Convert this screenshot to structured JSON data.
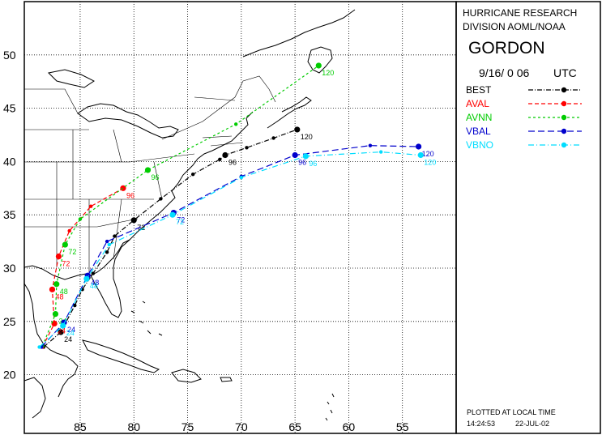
{
  "header": {
    "org_line1": "HURRICANE RESEARCH",
    "org_line2": "DIVISION AOML/NOAA",
    "storm_name": "GORDON",
    "datetime": "9/16/ 0 06",
    "tz": "UTC"
  },
  "footer": {
    "plotted_note": "PLOTTED AT LOCAL TIME",
    "time": "14:24:53",
    "date": "22-JUL-02"
  },
  "chart_data": {
    "type": "line",
    "lon_ticks": [
      {
        "value": 85,
        "label": "85"
      },
      {
        "value": 80,
        "label": "80"
      },
      {
        "value": 75,
        "label": "75"
      },
      {
        "value": 70,
        "label": "70"
      },
      {
        "value": 65,
        "label": "65"
      },
      {
        "value": 60,
        "label": "60"
      },
      {
        "value": 55,
        "label": "55"
      }
    ],
    "lat_ticks": [
      {
        "value": 50,
        "label": "50"
      },
      {
        "value": 45,
        "label": "45"
      },
      {
        "value": 40,
        "label": "40"
      },
      {
        "value": 35,
        "label": "35"
      },
      {
        "value": 30,
        "label": "30"
      },
      {
        "value": 25,
        "label": "25"
      },
      {
        "value": 20,
        "label": "20"
      }
    ],
    "xlim": [
      90.2,
      50.0
    ],
    "ylim": [
      14.5,
      55.0
    ],
    "series": [
      {
        "name": "BEST",
        "color": "#000000",
        "dash": "6,2,1,2",
        "points": [
          {
            "lon": 88.4,
            "lat": 22.6
          },
          {
            "lon": 86.8,
            "lat": 24.0,
            "label": "24"
          },
          {
            "lon": 85.5,
            "lat": 26.5
          },
          {
            "lon": 84.8,
            "lat": 28.0
          },
          {
            "lon": 83.8,
            "lat": 29.5
          },
          {
            "lon": 82.5,
            "lat": 31.5
          },
          {
            "lon": 81.8,
            "lat": 33.0
          },
          {
            "lon": 80.0,
            "lat": 34.5,
            "label": "72"
          },
          {
            "lon": 77.5,
            "lat": 36.5
          },
          {
            "lon": 74.5,
            "lat": 38.8
          },
          {
            "lon": 72.0,
            "lat": 40.2
          },
          {
            "lon": 71.5,
            "lat": 40.6,
            "label": "96"
          },
          {
            "lon": 69.5,
            "lat": 41.3
          },
          {
            "lon": 67.0,
            "lat": 42.2
          },
          {
            "lon": 64.8,
            "lat": 43.0,
            "label": "120"
          }
        ]
      },
      {
        "name": "AVAL",
        "color": "#ff0000",
        "dash": "5,3",
        "points": [
          {
            "lon": 88.5,
            "lat": 22.6
          },
          {
            "lon": 87.4,
            "lat": 24.8,
            "label": "24"
          },
          {
            "lon": 87.6,
            "lat": 28.0,
            "label": "48"
          },
          {
            "lon": 87.0,
            "lat": 31.1,
            "label": "72"
          },
          {
            "lon": 86.0,
            "lat": 33.5
          },
          {
            "lon": 84.0,
            "lat": 35.8
          },
          {
            "lon": 81.0,
            "lat": 37.5,
            "label": "96"
          }
        ]
      },
      {
        "name": "AVNN",
        "color": "#00cc00",
        "dash": "3,3",
        "points": [
          {
            "lon": 88.5,
            "lat": 22.7
          },
          {
            "lon": 87.3,
            "lat": 25.7,
            "label": "24"
          },
          {
            "lon": 87.2,
            "lat": 28.5,
            "label": "48"
          },
          {
            "lon": 86.4,
            "lat": 32.2,
            "label": "72"
          },
          {
            "lon": 85.0,
            "lat": 34.6
          },
          {
            "lon": 78.7,
            "lat": 39.2,
            "label": "96"
          },
          {
            "lon": 70.5,
            "lat": 43.5
          },
          {
            "lon": 62.8,
            "lat": 49.0,
            "label": "120"
          }
        ]
      },
      {
        "name": "VBAL",
        "color": "#0000cc",
        "dash": "8,4",
        "points": [
          {
            "lon": 88.6,
            "lat": 22.6
          },
          {
            "lon": 86.5,
            "lat": 24.9,
            "label": "24"
          },
          {
            "lon": 84.3,
            "lat": 29.3,
            "label": "48"
          },
          {
            "lon": 82.5,
            "lat": 32.5
          },
          {
            "lon": 76.3,
            "lat": 35.2,
            "label": "72"
          },
          {
            "lon": 70.0,
            "lat": 38.6
          },
          {
            "lon": 65.0,
            "lat": 40.6,
            "label": "96"
          },
          {
            "lon": 58.0,
            "lat": 41.5
          },
          {
            "lon": 53.5,
            "lat": 41.4,
            "label": "120"
          }
        ]
      },
      {
        "name": "VBNO",
        "color": "#00ddff",
        "dash": "7,3,1,3",
        "points": [
          {
            "lon": 88.8,
            "lat": 22.6
          },
          {
            "lon": 86.6,
            "lat": 24.6,
            "label": "24"
          },
          {
            "lon": 84.4,
            "lat": 29.0,
            "label": "48"
          },
          {
            "lon": 82.3,
            "lat": 32.2
          },
          {
            "lon": 76.4,
            "lat": 35.0,
            "label": "72"
          },
          {
            "lon": 70.0,
            "lat": 38.5
          },
          {
            "lon": 64.0,
            "lat": 40.5,
            "label": "96"
          },
          {
            "lon": 57.0,
            "lat": 40.9
          },
          {
            "lon": 53.3,
            "lat": 40.6,
            "label": "120"
          }
        ]
      }
    ]
  }
}
